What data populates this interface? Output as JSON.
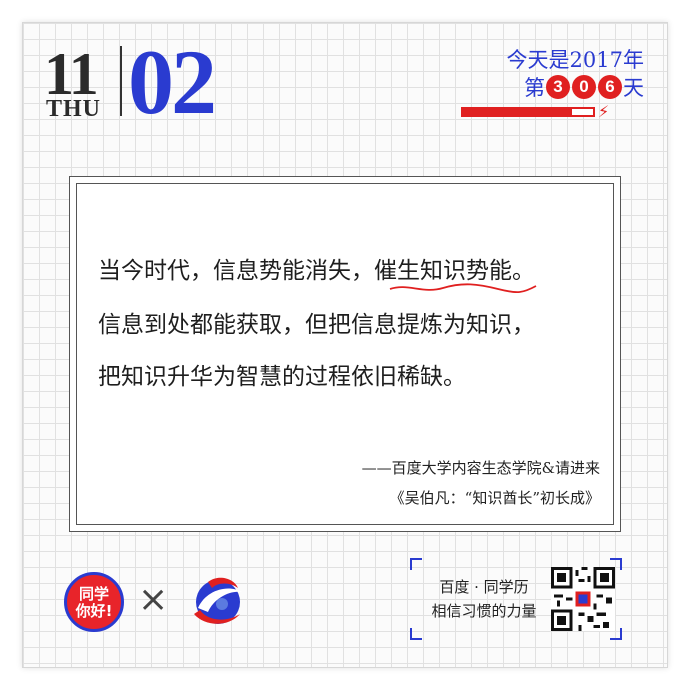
{
  "calendar": {
    "month": "11",
    "weekday": "THU",
    "day": "02",
    "year_text": "今天是2017年",
    "count_prefix": "第",
    "count_digits": [
      "3",
      "0",
      "6"
    ],
    "count_suffix": "天",
    "year_progress": 0.84
  },
  "quote": {
    "line1_a": "当今时代，信息势能消失，",
    "line1_b": "催生知识势能",
    "line1_c": "。",
    "line2": "信息到处都能获取，但把信息提炼为知识，",
    "line3": "把知识升华为智慧的过程依旧稀缺。",
    "attribution_1": "——百度大学内容生态学院&请进来",
    "attribution_2": "《吴伯凡：“知识酋长”初长成》"
  },
  "footer": {
    "logo_text": [
      "同学",
      "你好!"
    ],
    "cross_symbol": "×",
    "qr_line1": "百度 · 同学历",
    "qr_line2": "相信习惯的力量"
  },
  "colors": {
    "accent_blue": "#2a3bd0",
    "accent_red": "#e02020"
  }
}
